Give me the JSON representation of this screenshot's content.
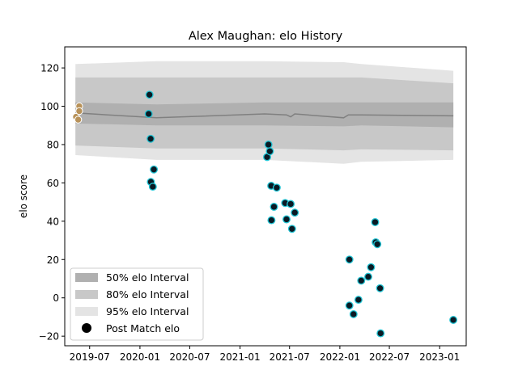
{
  "chart_data": {
    "type": "scatter",
    "title": "Alex Maughan: elo History",
    "xlabel": "",
    "ylabel": "elo score",
    "xlim": [
      "2019-04-01",
      "2023-04-08"
    ],
    "ylim": [
      -25,
      131
    ],
    "x_ticks": [
      "2019-07",
      "2020-01",
      "2020-07",
      "2021-01",
      "2021-07",
      "2022-01",
      "2022-07",
      "2023-01"
    ],
    "y_ticks": [
      -20,
      0,
      20,
      40,
      60,
      80,
      100,
      120
    ],
    "grid": false,
    "legend_position": "lower-left",
    "legend": [
      {
        "label": "50% elo Interval",
        "kind": "band50"
      },
      {
        "label": "80% elo Interval",
        "kind": "band80"
      },
      {
        "label": "95% elo Interval",
        "kind": "band95"
      },
      {
        "label": "Post Match elo",
        "kind": "marker"
      }
    ],
    "colors": {
      "band50": "#b0b0b0",
      "band80": "#c8c8c8",
      "band95": "#e4e4e4",
      "mean_line": "#808080",
      "marker_fill": "#0a1a24",
      "marker_edge": "#22c4d4",
      "early_marker_fill": "#b8925a",
      "early_marker_edge": "#ffffff"
    },
    "mean_line": [
      {
        "x": "2019-05-10",
        "y": 96.5
      },
      {
        "x": "2020-03-01",
        "y": 94
      },
      {
        "x": "2021-04-01",
        "y": 96
      },
      {
        "x": "2021-06-20",
        "y": 95.5
      },
      {
        "x": "2021-07-05",
        "y": 94.5
      },
      {
        "x": "2021-07-20",
        "y": 96
      },
      {
        "x": "2022-01-15",
        "y": 94
      },
      {
        "x": "2022-02-01",
        "y": 95.5
      },
      {
        "x": "2022-03-20",
        "y": 95.5
      },
      {
        "x": "2023-02-20",
        "y": 95
      }
    ],
    "band50": {
      "x": [
        "2019-05-10",
        "2020-03-01",
        "2021-04-01",
        "2022-01-15",
        "2022-03-20",
        "2023-02-20"
      ],
      "lower": [
        91,
        90,
        90,
        89.5,
        90,
        89
      ],
      "upper": [
        102,
        101,
        102,
        102,
        102,
        102
      ]
    },
    "band80": {
      "x": [
        "2019-05-10",
        "2020-03-01",
        "2021-04-01",
        "2022-01-15",
        "2022-03-20",
        "2023-02-20"
      ],
      "lower": [
        79.5,
        78,
        78,
        77,
        77.5,
        77
      ],
      "upper": [
        115,
        115,
        115,
        115,
        115,
        112
      ]
    },
    "band95": {
      "x": [
        "2019-05-10",
        "2020-03-01",
        "2021-04-01",
        "2022-01-15",
        "2022-03-20",
        "2023-02-20"
      ],
      "lower": [
        74.5,
        72,
        72,
        70,
        71,
        72
      ],
      "upper": [
        122,
        123.5,
        123.5,
        123,
        122,
        118.5
      ]
    },
    "early_points": [
      {
        "x": "2019-05-12",
        "y": 94.5
      },
      {
        "x": "2019-05-20",
        "y": 93
      },
      {
        "x": "2019-05-24",
        "y": 100
      },
      {
        "x": "2019-05-24",
        "y": 97.5
      }
    ],
    "post_match": [
      {
        "x": "2020-02-02",
        "y": 96
      },
      {
        "x": "2020-02-05",
        "y": 106
      },
      {
        "x": "2020-02-09",
        "y": 83
      },
      {
        "x": "2020-02-10",
        "y": 60.5
      },
      {
        "x": "2020-02-17",
        "y": 58
      },
      {
        "x": "2020-02-21",
        "y": 67
      },
      {
        "x": "2021-04-10",
        "y": 73.5
      },
      {
        "x": "2021-04-15",
        "y": 80
      },
      {
        "x": "2021-04-20",
        "y": 76.5
      },
      {
        "x": "2021-04-25",
        "y": 58.5
      },
      {
        "x": "2021-04-26",
        "y": 40.5
      },
      {
        "x": "2021-05-05",
        "y": 47.5
      },
      {
        "x": "2021-05-15",
        "y": 57.5
      },
      {
        "x": "2021-06-15",
        "y": 49.5
      },
      {
        "x": "2021-06-20",
        "y": 41
      },
      {
        "x": "2021-07-05",
        "y": 49
      },
      {
        "x": "2021-07-10",
        "y": 36
      },
      {
        "x": "2021-07-20",
        "y": 44.5
      },
      {
        "x": "2022-02-05",
        "y": 20
      },
      {
        "x": "2022-02-05",
        "y": -4
      },
      {
        "x": "2022-02-20",
        "y": -8.5
      },
      {
        "x": "2022-03-10",
        "y": -1
      },
      {
        "x": "2022-03-20",
        "y": 9
      },
      {
        "x": "2022-04-15",
        "y": 11
      },
      {
        "x": "2022-04-25",
        "y": 16
      },
      {
        "x": "2022-05-10",
        "y": 39.5
      },
      {
        "x": "2022-05-12",
        "y": 29
      },
      {
        "x": "2022-05-18",
        "y": 28
      },
      {
        "x": "2022-05-28",
        "y": 5
      },
      {
        "x": "2022-05-30",
        "y": -18.5
      },
      {
        "x": "2023-02-20",
        "y": -11.5
      }
    ]
  }
}
